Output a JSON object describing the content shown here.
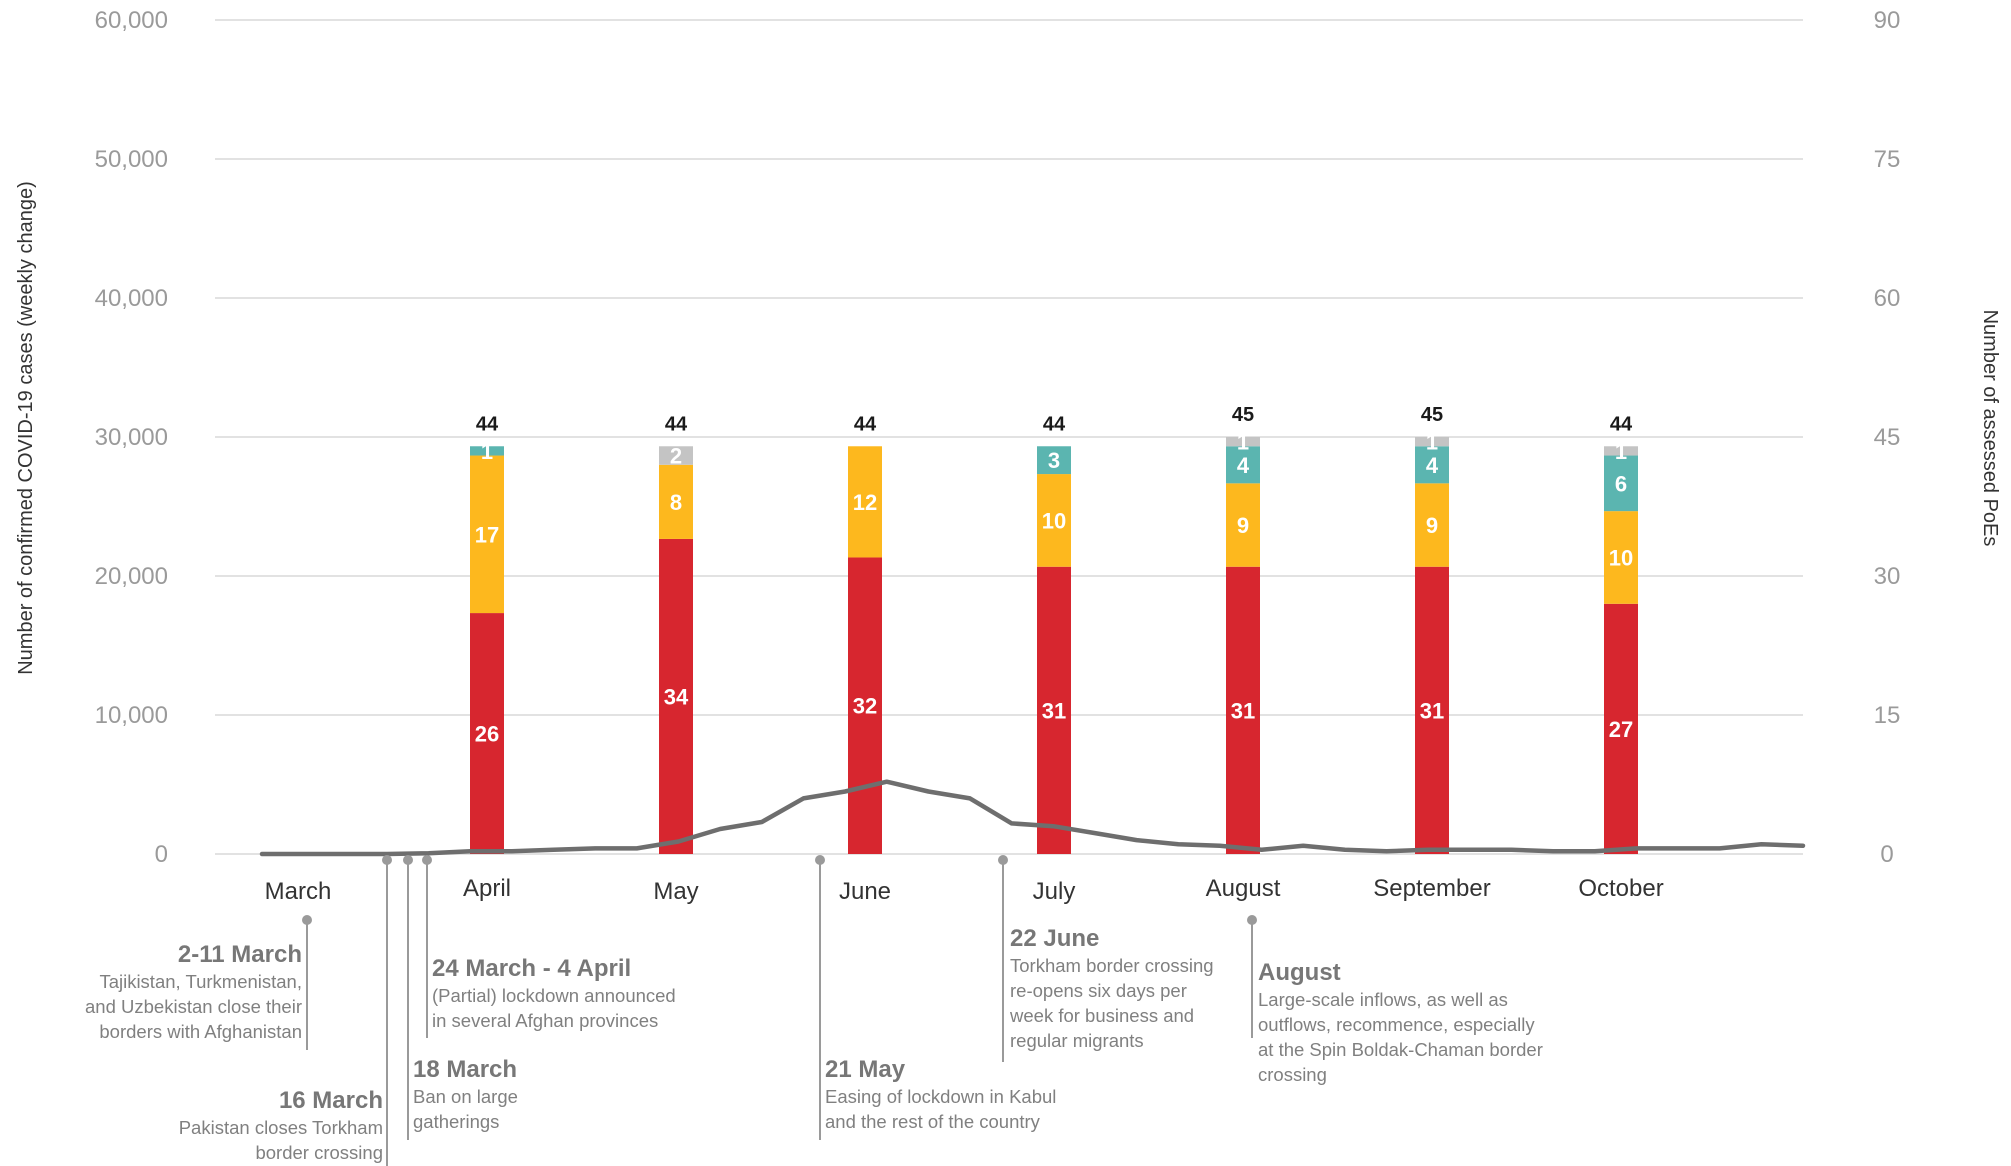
{
  "chart_data": {
    "type": "bar",
    "ylabel_left": "Number of confirmed COVID-19 cases (weekly change)",
    "ylabel_right": "Number of assessed PoEs",
    "y_left_ticks": [
      "0",
      "10,000",
      "20,000",
      "30,000",
      "40,000",
      "50,000",
      "60,000"
    ],
    "y_left_range": [
      0,
      60000
    ],
    "y_right_ticks": [
      "0",
      "15",
      "30",
      "45",
      "60",
      "75",
      "90"
    ],
    "y_right_range": [
      0,
      90
    ],
    "months": [
      "March",
      "April",
      "May",
      "June",
      "July",
      "August",
      "September",
      "October"
    ],
    "series": [
      {
        "name": "red",
        "color": "#d7262f"
      },
      {
        "name": "orange",
        "color": "#fdb81e"
      },
      {
        "name": "teal",
        "color": "#5bb5b0"
      },
      {
        "name": "grey",
        "color": "#c4c4c4"
      }
    ],
    "bars": [
      {
        "month": "April",
        "total": "44",
        "segments": [
          26,
          17,
          1,
          0
        ]
      },
      {
        "month": "May",
        "total": "44",
        "segments": [
          34,
          8,
          0,
          2
        ]
      },
      {
        "month": "June",
        "total": "44",
        "segments": [
          32,
          12,
          0,
          0
        ]
      },
      {
        "month": "July",
        "total": "44",
        "segments": [
          31,
          10,
          3,
          0
        ]
      },
      {
        "month": "August",
        "total": "45",
        "segments": [
          31,
          9,
          4,
          1
        ]
      },
      {
        "month": "September",
        "total": "45",
        "segments": [
          31,
          9,
          4,
          1
        ]
      },
      {
        "month": "October",
        "total": "44",
        "segments": [
          27,
          10,
          6,
          1
        ]
      }
    ],
    "cases_line": {
      "color": "#6e6e6e",
      "weekly_cases": [
        0,
        0,
        0,
        0,
        50,
        200,
        200,
        300,
        400,
        400,
        900,
        1800,
        2300,
        4000,
        4500,
        5200,
        4500,
        4000,
        2200,
        2000,
        1500,
        1000,
        700,
        600,
        300,
        600,
        300,
        200,
        300,
        300,
        300,
        200,
        200,
        400,
        400,
        400,
        700,
        600
      ]
    },
    "annotations": [
      {
        "title": "2-11 March",
        "lines": [
          "Tajikistan, Turkmenistan,",
          "and Uzbekistan close their",
          "borders with Afghanistan"
        ]
      },
      {
        "title": "16 March",
        "lines": [
          "Pakistan closes Torkham",
          "border crossing"
        ]
      },
      {
        "title": "18 March",
        "lines": [
          "Ban on large",
          "gatherings"
        ]
      },
      {
        "title": "24 March - 4 April",
        "lines": [
          "(Partial) lockdown announced",
          "in several Afghan provinces"
        ]
      },
      {
        "title": "21 May",
        "lines": [
          "Easing of lockdown in Kabul",
          "and the rest of the country"
        ]
      },
      {
        "title": "22 June",
        "lines": [
          "Torkham border crossing",
          "re-opens six days per",
          "week for business and",
          "regular migrants"
        ]
      },
      {
        "title": "August",
        "lines": [
          "Large-scale inflows, as well as",
          "outflows, recommence, especially",
          "at the Spin Boldak-Chaman border",
          "crossing"
        ]
      }
    ],
    "grid": true,
    "legend": "none"
  }
}
